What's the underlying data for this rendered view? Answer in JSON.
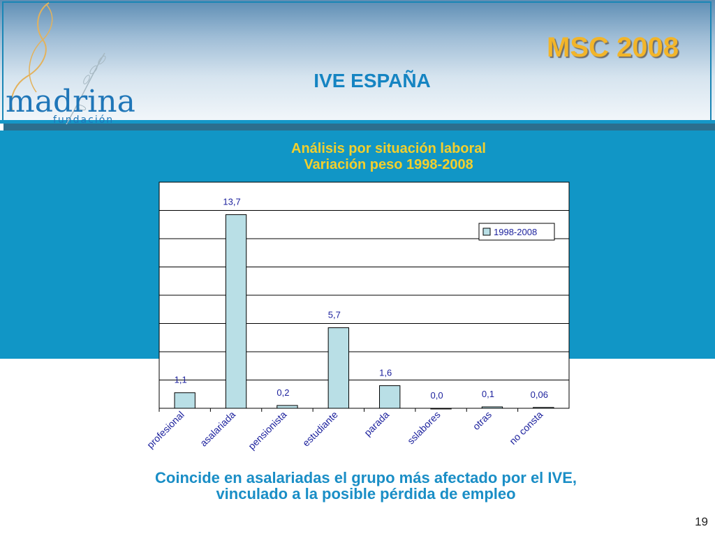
{
  "header": {
    "title": "MSC 2008",
    "subtitle": "IVE ESPAÑA",
    "logo": {
      "name": "madrina",
      "tagline": "fundación"
    }
  },
  "chart_title": {
    "line1": "Análisis por situación laboral",
    "line2": "Variación peso 1998-2008"
  },
  "chart_data": {
    "type": "bar",
    "title": "Análisis por situación laboral — Variación peso 1998-2008",
    "categories": [
      "profesional",
      "asalariada",
      "pensionista",
      "estudiante",
      "parada",
      "sslabores",
      "otras",
      "no consta"
    ],
    "series": [
      {
        "name": "1998-2008",
        "values": [
          1.1,
          13.7,
          0.2,
          5.7,
          1.6,
          0.0,
          0.1,
          0.06
        ]
      }
    ],
    "data_labels": [
      "1,1",
      "13,7",
      "0,2",
      "5,7",
      "1,6",
      "0,0",
      "0,1",
      "0,06"
    ],
    "ylim": [
      0,
      16
    ],
    "gridlines": true,
    "legend_position": "top-right",
    "bar_color": "#b9dfe6"
  },
  "caption": {
    "line1": "Coincide en asalariadas el grupo más afectado por el IVE,",
    "line2": "vinculado a la posible pérdida de empleo"
  },
  "page_number": "19"
}
